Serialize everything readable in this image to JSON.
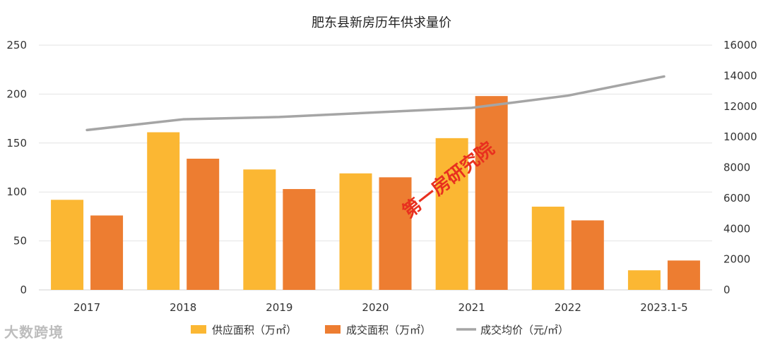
{
  "chart_data": {
    "type": "bar",
    "title": "肥东县新房历年供求量价",
    "categories": [
      "2017",
      "2018",
      "2019",
      "2020",
      "2021",
      "2022",
      "2023.1-5"
    ],
    "series": [
      {
        "name": "供应面积（万㎡）",
        "kind": "bar",
        "axis": "left",
        "color": "#fbb733",
        "values": [
          92,
          161,
          123,
          119,
          155,
          85,
          20
        ]
      },
      {
        "name": "成交面积（万㎡）",
        "kind": "bar",
        "axis": "left",
        "color": "#ed7d31",
        "values": [
          76,
          134,
          103,
          115,
          198,
          71,
          30
        ]
      },
      {
        "name": "成交均价（元/㎡）",
        "kind": "line",
        "axis": "right",
        "color": "#a5a5a5",
        "values": [
          10450,
          11150,
          11300,
          11600,
          11900,
          12700,
          13950
        ]
      }
    ],
    "y_left": {
      "min": 0,
      "max": 250,
      "step": 50,
      "ticks": [
        "0",
        "50",
        "100",
        "150",
        "200",
        "250"
      ]
    },
    "y_right": {
      "min": 0,
      "max": 16000,
      "step": 2000,
      "ticks": [
        "0",
        "2000",
        "4000",
        "6000",
        "8000",
        "10000",
        "12000",
        "14000",
        "16000"
      ]
    },
    "grid": true,
    "legend_position": "bottom"
  },
  "watermark": "第一房研究院",
  "brand": "大数跨境"
}
